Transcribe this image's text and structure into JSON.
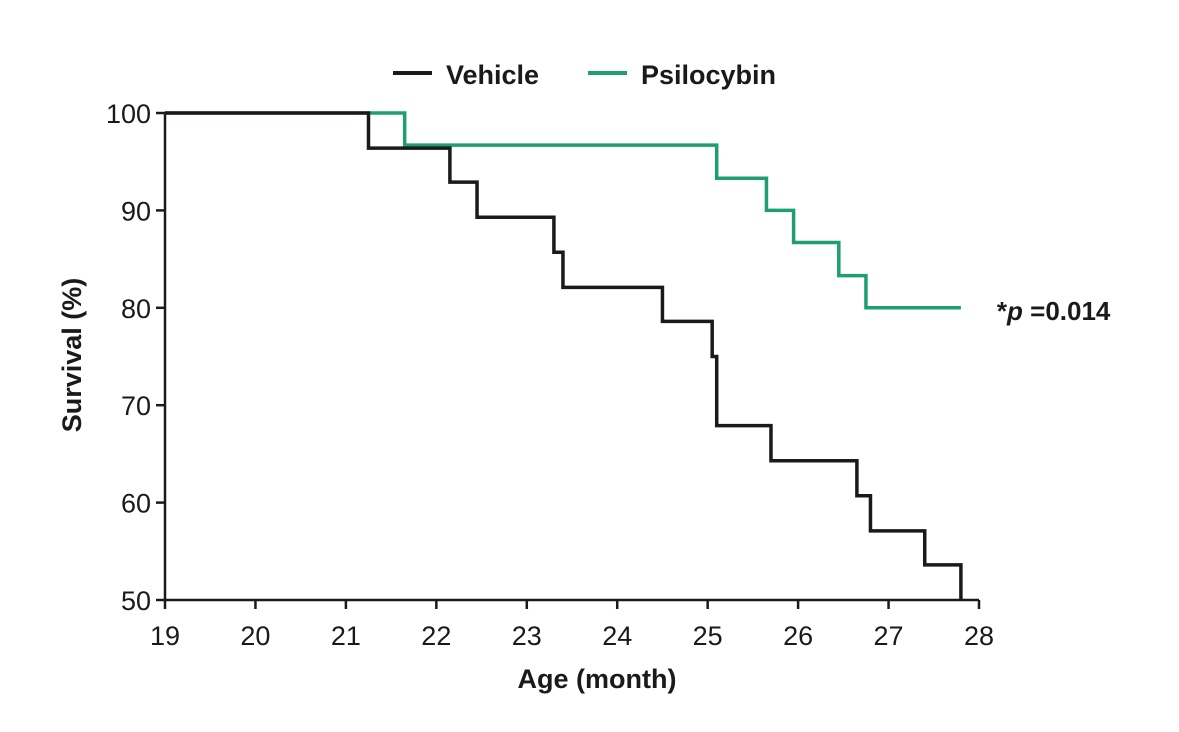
{
  "chart_data": {
    "type": "line",
    "step": "post",
    "title": "",
    "xlabel": "Age (month)",
    "ylabel": "Survival (%)",
    "xlim": [
      19,
      28
    ],
    "ylim": [
      50,
      100
    ],
    "xticks": [
      "19",
      "20",
      "21",
      "22",
      "23",
      "24",
      "25",
      "26",
      "27",
      "28"
    ],
    "yticks": [
      "50",
      "60",
      "70",
      "80",
      "90",
      "100"
    ],
    "grid": false,
    "legend_position": "top",
    "series": [
      {
        "name": "Vehicle",
        "color": "#1a1a1a",
        "x": [
          19,
          21.25,
          22.15,
          22.45,
          23.3,
          23.4,
          24.5,
          25.05,
          25.1,
          25.7,
          26.65,
          26.8,
          27.4,
          27.8,
          27.8
        ],
        "y": [
          100,
          96.4,
          92.9,
          89.3,
          85.7,
          82.1,
          78.6,
          75,
          67.9,
          64.3,
          60.7,
          57.1,
          53.6,
          50,
          50
        ]
      },
      {
        "name": "Psilocybin",
        "color": "#1f9e72",
        "x": [
          19,
          21.65,
          25.1,
          25.65,
          25.95,
          26.45,
          26.75,
          27.8
        ],
        "y": [
          100,
          96.7,
          93.3,
          90,
          86.7,
          83.3,
          80,
          80
        ]
      }
    ],
    "annotations": [
      {
        "prefix": "*",
        "italic": "p",
        "text": " =0.014",
        "x": 27.8,
        "y": 80
      }
    ]
  }
}
